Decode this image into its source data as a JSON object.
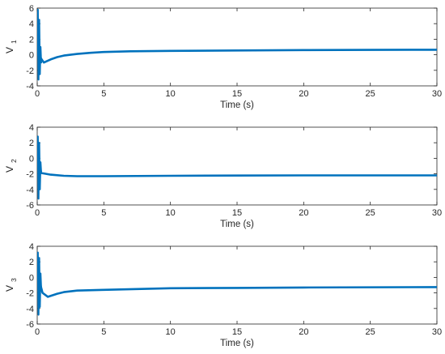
{
  "line_color": "#0072bd",
  "chart_data": [
    {
      "type": "line",
      "xlabel": "Time (s)",
      "ylabel_main": "V",
      "ylabel_sub": "1",
      "xlim": [
        0,
        30
      ],
      "ylim": [
        -4,
        6
      ],
      "xticks": [
        "0",
        "5",
        "10",
        "15",
        "20",
        "25",
        "30"
      ],
      "yticks": [
        "-4",
        "-2",
        "0",
        "2",
        "4",
        "6"
      ],
      "grid": false,
      "series": [
        {
          "x": [
            0,
            0.1,
            0.5,
            1,
            1.5,
            2,
            3,
            4,
            5,
            7,
            10,
            15,
            20,
            25,
            30
          ],
          "y": [
            0,
            0,
            -1.0,
            -0.6,
            -0.3,
            -0.1,
            0.1,
            0.25,
            0.35,
            0.45,
            0.5,
            0.55,
            0.6,
            0.62,
            0.65
          ]
        }
      ],
      "transient": {
        "x": [
          0,
          0.05,
          0.1,
          0.15,
          0.2,
          0.25,
          0.3
        ],
        "y": [
          0,
          5.8,
          -3.2,
          4.5,
          -2.5,
          1.0,
          -1.1
        ]
      }
    },
    {
      "type": "line",
      "xlabel": "Time (s)",
      "ylabel_main": "V",
      "ylabel_sub": "2",
      "xlim": [
        0,
        30
      ],
      "ylim": [
        -6,
        4
      ],
      "xticks": [
        "0",
        "5",
        "10",
        "15",
        "20",
        "25",
        "30"
      ],
      "yticks": [
        "-6",
        "-4",
        "-2",
        "0",
        "2",
        "4"
      ],
      "grid": false,
      "series": [
        {
          "x": [
            0,
            0.1,
            0.3,
            0.5,
            1,
            2,
            3,
            5,
            10,
            15,
            20,
            30
          ],
          "y": [
            0,
            0,
            -1.9,
            -1.95,
            -2.1,
            -2.25,
            -2.3,
            -2.3,
            -2.25,
            -2.22,
            -2.2,
            -2.2
          ]
        }
      ],
      "transient": {
        "x": [
          0,
          0.05,
          0.1,
          0.15,
          0.2,
          0.25,
          0.3
        ],
        "y": [
          0,
          2.8,
          -5.2,
          2.0,
          -4.0,
          -0.5,
          -1.9
        ]
      }
    },
    {
      "type": "line",
      "xlabel": "Time (s)",
      "ylabel_main": "V",
      "ylabel_sub": "3",
      "xlim": [
        0,
        30
      ],
      "ylim": [
        -6,
        4
      ],
      "xticks": [
        "0",
        "5",
        "10",
        "15",
        "20",
        "25",
        "30"
      ],
      "yticks": [
        "-6",
        "-4",
        "-2",
        "0",
        "2",
        "4"
      ],
      "grid": false,
      "series": [
        {
          "x": [
            0,
            0.1,
            0.4,
            0.8,
            1.5,
            2,
            3,
            5,
            10,
            15,
            20,
            30
          ],
          "y": [
            0,
            0,
            -2.0,
            -2.5,
            -2.1,
            -1.9,
            -1.7,
            -1.6,
            -1.4,
            -1.35,
            -1.3,
            -1.25
          ]
        }
      ],
      "transient": {
        "x": [
          0,
          0.05,
          0.1,
          0.15,
          0.2,
          0.25,
          0.3,
          0.4
        ],
        "y": [
          0,
          3.2,
          -4.8,
          2.5,
          -3.8,
          0.5,
          -1.5,
          -2.0
        ]
      }
    }
  ]
}
